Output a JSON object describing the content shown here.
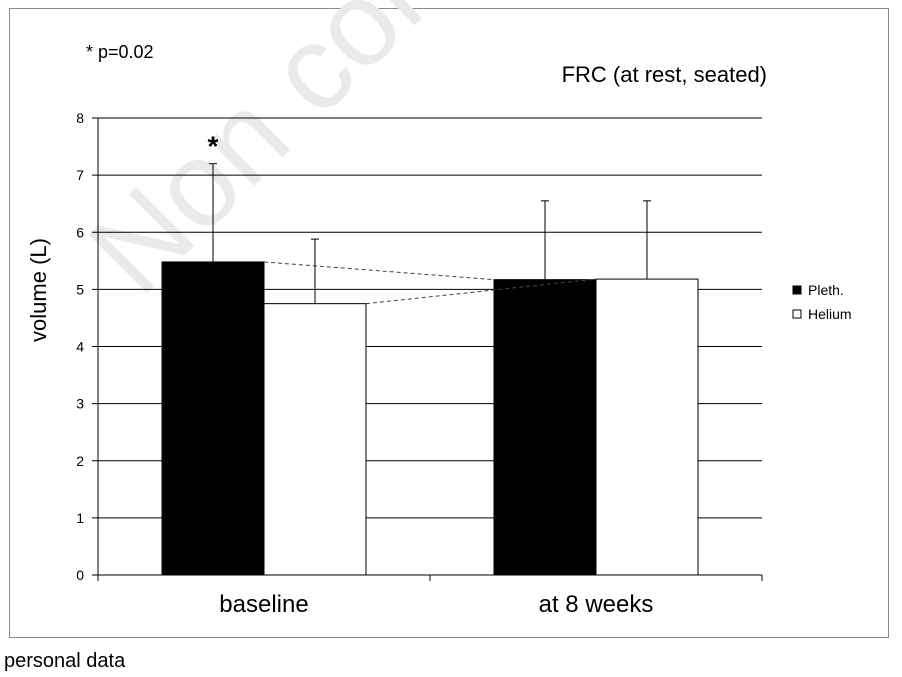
{
  "note": "* p=0.02",
  "footer_text": "personal data",
  "watermark": "Non commercial",
  "colors": {
    "pleth": "#000000",
    "helium": "#ffffff",
    "grid": "#000000",
    "frame": "#8a8a8a",
    "watermark": "#e6e6e6"
  },
  "chart_data": {
    "type": "bar",
    "title": "FRC (at rest, seated)",
    "xlabel": "",
    "ylabel": "volume (L)",
    "ylim": [
      0,
      8
    ],
    "yticks": [
      0,
      1,
      2,
      3,
      4,
      5,
      6,
      7,
      8
    ],
    "grid": true,
    "legend_position": "right",
    "categories": [
      "baseline",
      "at 8 weeks"
    ],
    "series": [
      {
        "name": "Pleth.",
        "values": [
          5.48,
          5.17
        ],
        "error_upper": [
          7.2,
          6.55
        ],
        "color": "#000000"
      },
      {
        "name": "Helium",
        "values": [
          4.75,
          5.18
        ],
        "error_upper": [
          5.88,
          6.55
        ],
        "color": "#ffffff"
      }
    ],
    "annotations": [
      {
        "text": "*",
        "category": "baseline",
        "series": "Pleth."
      }
    ],
    "connectors": [
      {
        "series": "Pleth.",
        "from": "baseline",
        "to": "at 8 weeks",
        "style": "dashed"
      },
      {
        "series": "Helium",
        "from": "baseline",
        "to": "at 8 weeks",
        "style": "dashed"
      }
    ]
  }
}
